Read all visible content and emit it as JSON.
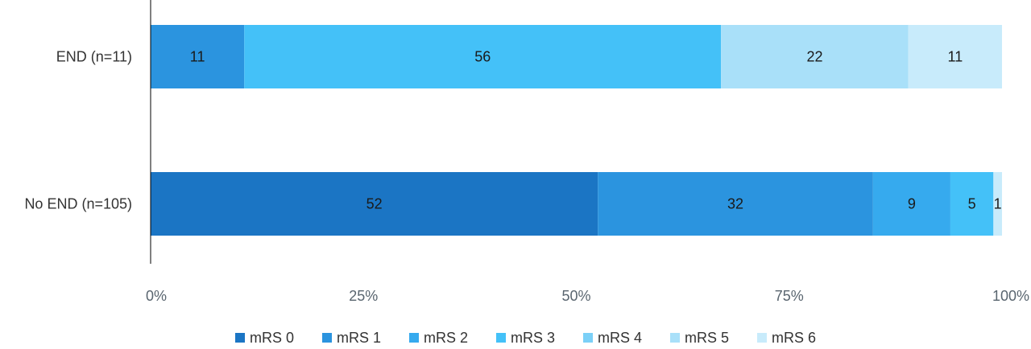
{
  "chart_data": {
    "type": "bar",
    "orientation": "horizontal",
    "stacked": true,
    "percent": true,
    "title": "",
    "xlabel": "",
    "ylabel": "",
    "xlim": [
      0,
      100
    ],
    "categories": [
      "END (n=11)",
      "No END (n=105)"
    ],
    "xticks": [
      "0%",
      "25%",
      "50%",
      "75%",
      "100%"
    ],
    "grid": false,
    "legend_position": "bottom",
    "series": [
      {
        "name": "mRS 0",
        "color": "#1b75c4",
        "values": [
          0,
          52
        ],
        "labels": [
          "",
          "52"
        ]
      },
      {
        "name": "mRS 1",
        "color": "#2b94df",
        "values": [
          11,
          32
        ],
        "labels": [
          "11",
          "32"
        ]
      },
      {
        "name": "mRS 2",
        "color": "#36aaee",
        "values": [
          0,
          9
        ],
        "labels": [
          "",
          "9"
        ]
      },
      {
        "name": "mRS 3",
        "color": "#44c1f8",
        "values": [
          56,
          5
        ],
        "labels": [
          "56",
          "5"
        ]
      },
      {
        "name": "mRS 4",
        "color": "#7bd0f7",
        "values": [
          0,
          0
        ],
        "labels": [
          "",
          ""
        ]
      },
      {
        "name": "mRS 5",
        "color": "#a9e0f9",
        "values": [
          22,
          0
        ],
        "labels": [
          "22",
          ""
        ]
      },
      {
        "name": "mRS 6",
        "color": "#c8ebfb",
        "values": [
          11,
          1
        ],
        "labels": [
          "11",
          "1"
        ]
      }
    ]
  }
}
